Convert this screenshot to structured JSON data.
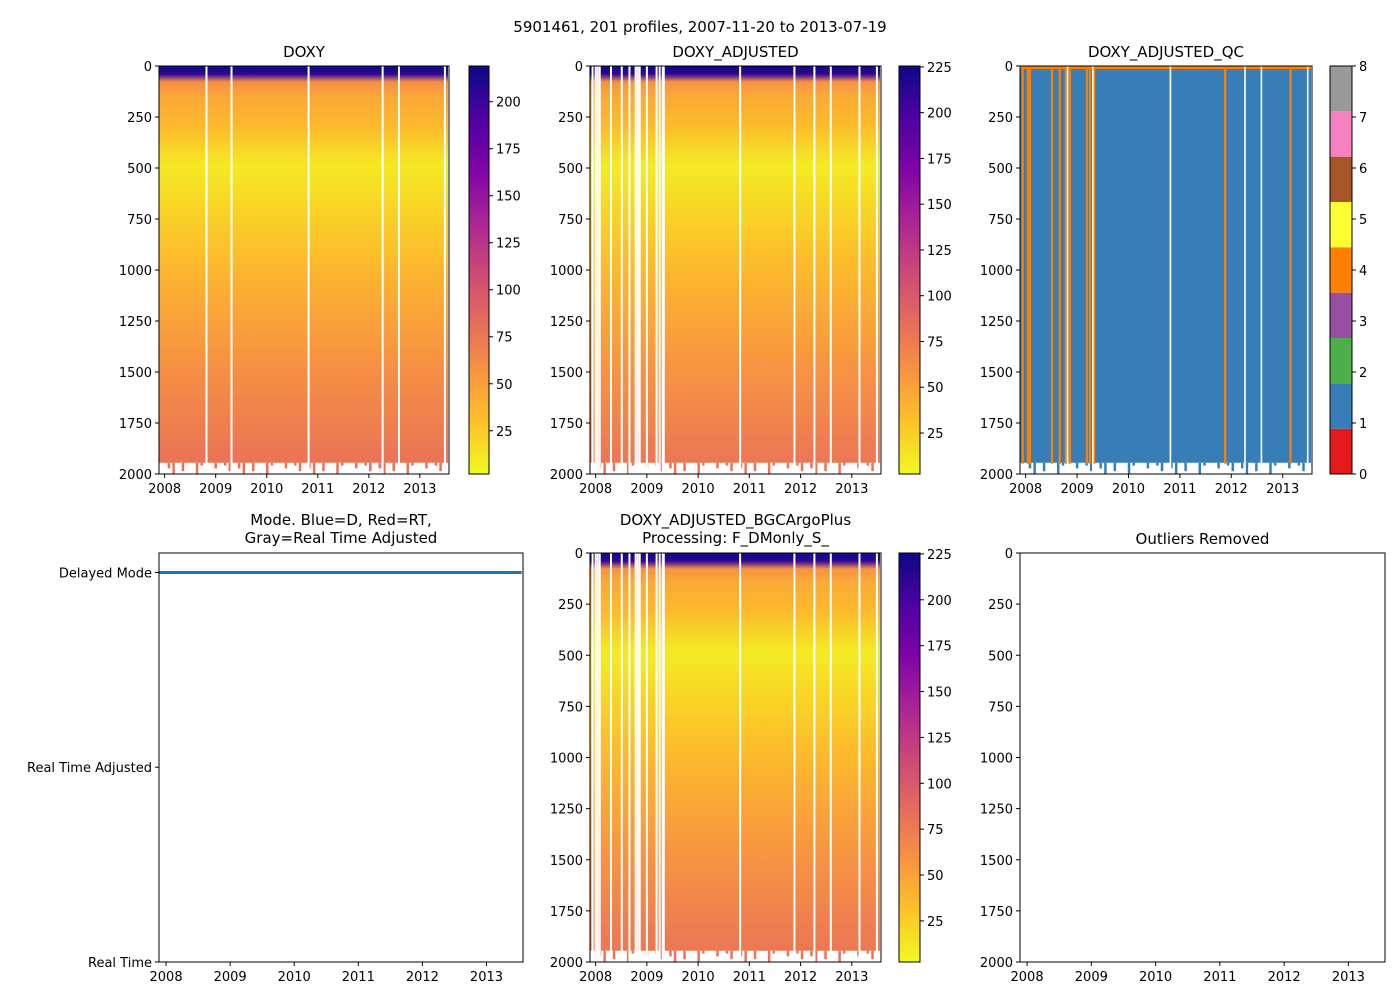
{
  "suptitle": "5901461, 201 profiles, 2007-11-20 to 2013-07-19",
  "colors": {
    "white_gap": "#ffffff",
    "axis": "#000000",
    "mode_line": "#1f77b4"
  },
  "chart_data": [
    {
      "type": "heatmap",
      "title": "DOXY",
      "xlim": [
        2007.89,
        2013.57
      ],
      "ylim": [
        2000,
        0
      ],
      "xticks": [
        "2008",
        "2009",
        "2010",
        "2011",
        "2012",
        "2013"
      ],
      "yticks": [
        "0",
        "250",
        "500",
        "750",
        "1000",
        "1250",
        "1500",
        "1750",
        "2000"
      ],
      "cmap": "plasma_r",
      "colorbar": {
        "range": [
          2,
          219
        ],
        "ticks": [
          "25",
          "50",
          "75",
          "100",
          "125",
          "150",
          "175",
          "200"
        ]
      },
      "median_profile": {
        "depth": [
          0,
          40,
          80,
          150,
          300,
          500,
          750,
          1000,
          1500,
          2000
        ],
        "value": [
          220,
          205,
          60,
          45,
          35,
          10,
          22,
          35,
          58,
          78
        ]
      },
      "missing_profiles": [
        2008.82,
        2009.31,
        2010.82,
        2012.27,
        2012.59,
        2013.49
      ]
    },
    {
      "type": "heatmap",
      "title": "DOXY_ADJUSTED",
      "xlim": [
        2007.89,
        2013.57
      ],
      "ylim": [
        2000,
        0
      ],
      "xticks": [
        "2008",
        "2009",
        "2010",
        "2011",
        "2012",
        "2013"
      ],
      "yticks": [
        "0",
        "250",
        "500",
        "750",
        "1000",
        "1250",
        "1500",
        "1750",
        "2000"
      ],
      "cmap": "plasma_r",
      "colorbar": {
        "range": [
          2.6,
          225.5
        ],
        "ticks": [
          "25",
          "50",
          "75",
          "100",
          "125",
          "150",
          "175",
          "200",
          "225"
        ]
      },
      "median_profile": {
        "depth": [
          0,
          40,
          80,
          150,
          300,
          500,
          750,
          1000,
          1500,
          2000
        ],
        "value": [
          225,
          210,
          60,
          45,
          35,
          10,
          22,
          35,
          58,
          78
        ]
      },
      "missing_profiles": [
        2007.94,
        2008.0,
        2008.04,
        2008.08,
        2008.3,
        2008.51,
        2008.66,
        2008.78,
        2008.82,
        2008.86,
        2009.0,
        2009.19,
        2009.25,
        2009.31,
        2009.33,
        2010.82,
        2011.88,
        2012.27,
        2012.59,
        2013.15,
        2013.49
      ]
    },
    {
      "type": "heatmap",
      "title": "DOXY_ADJUSTED_QC",
      "xlim": [
        2007.89,
        2013.57
      ],
      "ylim": [
        2000,
        0
      ],
      "xticks": [
        "2008",
        "2009",
        "2010",
        "2011",
        "2012",
        "2013"
      ],
      "yticks": [
        "0",
        "250",
        "500",
        "750",
        "1000",
        "1250",
        "1500",
        "1750",
        "2000"
      ],
      "colorbar": {
        "range": [
          0,
          8
        ],
        "ticks": [
          "0",
          "1",
          "2",
          "3",
          "4",
          "5",
          "6",
          "7",
          "8"
        ],
        "classes": [
          "#e41a1c",
          "#377eb8",
          "#4daf4a",
          "#984ea3",
          "#ff7f00",
          "#ffff33",
          "#a65628",
          "#f781bf",
          "#999999"
        ]
      },
      "dominant_flag": 1,
      "flag4_profiles": [
        2007.94,
        2008.04,
        2008.08,
        2008.51,
        2008.66,
        2008.78,
        2008.86,
        2009.19,
        2009.25,
        2009.33,
        2011.88,
        2013.15
      ],
      "missing_profiles": [
        2008.82,
        2009.31,
        2010.82,
        2012.27,
        2012.59,
        2013.49
      ]
    },
    {
      "type": "line",
      "title": "Mode. Blue=D, Red=RT,\nGray=Real Time Adjusted",
      "title_lines": [
        "Mode. Blue=D, Red=RT,",
        "Gray=Real Time Adjusted"
      ],
      "xlim": [
        2007.89,
        2013.57
      ],
      "ylim": [
        0,
        2.1
      ],
      "xticks": [
        "2008",
        "2009",
        "2010",
        "2011",
        "2012",
        "2013"
      ],
      "yticks": [
        {
          "value": 2,
          "label": "Delayed Mode"
        },
        {
          "value": 1,
          "label": "Real Time Adjusted"
        },
        {
          "value": 0,
          "label": "Real Time"
        }
      ],
      "series": [
        {
          "name": "Delayed Mode",
          "x": [
            2007.89,
            2013.55
          ],
          "y": [
            2,
            2
          ],
          "color": "#1f77b4"
        }
      ]
    },
    {
      "type": "heatmap",
      "title": "DOXY_ADJUSTED_BGCArgoPlus\nProcessing: F_DMonly_S_",
      "title_lines": [
        "DOXY_ADJUSTED_BGCArgoPlus",
        "Processing: F_DMonly_S_"
      ],
      "xlim": [
        2007.89,
        2013.57
      ],
      "ylim": [
        2000,
        0
      ],
      "xticks": [
        "2008",
        "2009",
        "2010",
        "2011",
        "2012",
        "2013"
      ],
      "yticks": [
        "0",
        "250",
        "500",
        "750",
        "1000",
        "1250",
        "1500",
        "1750",
        "2000"
      ],
      "cmap": "plasma_r",
      "colorbar": {
        "range": [
          2.6,
          225.5
        ],
        "ticks": [
          "25",
          "50",
          "75",
          "100",
          "125",
          "150",
          "175",
          "200",
          "225"
        ]
      },
      "median_profile": {
        "depth": [
          0,
          40,
          80,
          150,
          300,
          500,
          750,
          1000,
          1500,
          2000
        ],
        "value": [
          225,
          210,
          60,
          45,
          35,
          10,
          22,
          35,
          58,
          78
        ]
      },
      "missing_profiles": [
        2007.94,
        2008.0,
        2008.04,
        2008.08,
        2008.3,
        2008.51,
        2008.66,
        2008.78,
        2008.82,
        2008.86,
        2009.0,
        2009.19,
        2009.25,
        2009.31,
        2009.33,
        2010.82,
        2011.88,
        2012.27,
        2012.59,
        2013.15,
        2013.49
      ]
    },
    {
      "type": "scatter",
      "title": "Outliers Removed",
      "xlim": [
        2007.89,
        2013.57
      ],
      "ylim": [
        2000,
        0
      ],
      "xticks": [
        "2008",
        "2009",
        "2010",
        "2011",
        "2012",
        "2013"
      ],
      "yticks": [
        "0",
        "250",
        "500",
        "750",
        "1000",
        "1250",
        "1500",
        "1750",
        "2000"
      ],
      "points": []
    }
  ]
}
